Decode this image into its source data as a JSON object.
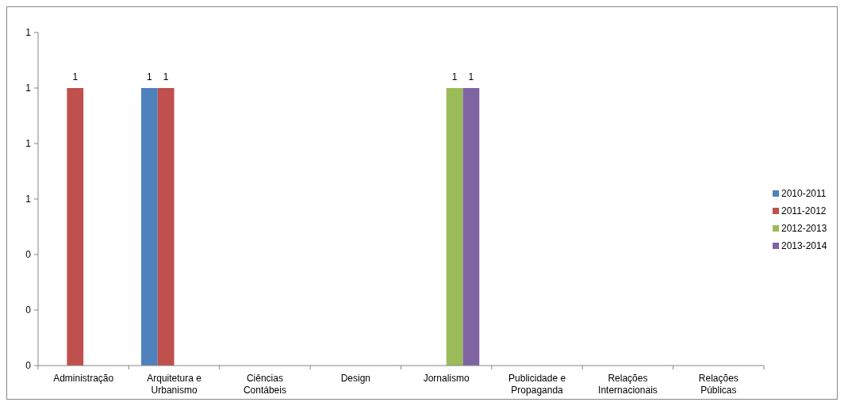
{
  "chart_data": {
    "type": "bar",
    "categories": [
      "Administração",
      "Arquitetura e Urbanismo",
      "Ciências Contábeis",
      "Design",
      "Jornalismo",
      "Publicidade e Propaganda",
      "Relações Internacionais",
      "Relações Públicas"
    ],
    "series": [
      {
        "name": "2010-2011",
        "color": "#4f81bd",
        "values": [
          null,
          1,
          null,
          null,
          null,
          null,
          null,
          null
        ]
      },
      {
        "name": "2011-2012",
        "color": "#c0504d",
        "values": [
          1,
          1,
          null,
          null,
          null,
          null,
          null,
          null
        ]
      },
      {
        "name": "2012-2013",
        "color": "#9bbb59",
        "values": [
          null,
          null,
          null,
          null,
          1,
          null,
          null,
          null
        ]
      },
      {
        "name": "2013-2014",
        "color": "#8064a2",
        "values": [
          null,
          null,
          null,
          null,
          1,
          null,
          null,
          null
        ]
      }
    ],
    "ylim": [
      0,
      1.2
    ],
    "yticks": [
      {
        "value": 0,
        "label": "0"
      },
      {
        "value": 0.2,
        "label": "0"
      },
      {
        "value": 0.4,
        "label": "0"
      },
      {
        "value": 0.6,
        "label": "1"
      },
      {
        "value": 0.8,
        "label": "1"
      },
      {
        "value": 1,
        "label": "1"
      },
      {
        "value": 1.2,
        "label": "1"
      }
    ],
    "data_labels": true,
    "legend": "right",
    "grid": false
  }
}
